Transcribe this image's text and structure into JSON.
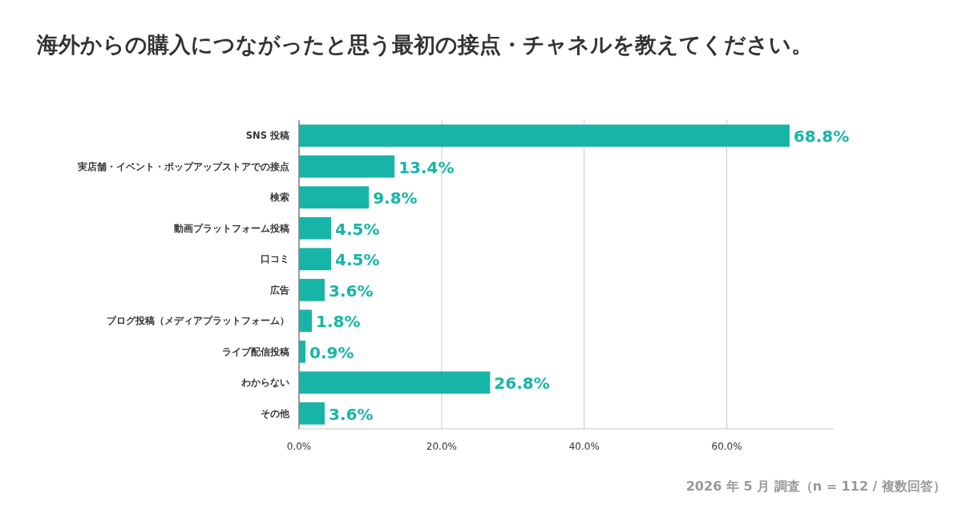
{
  "chart_data": {
    "type": "bar",
    "orientation": "horizontal",
    "title": "海外からの購入につながったと思う最初の接点・チャネルを教えてください。",
    "categories": [
      "SNS 投稿",
      "実店舗・イベント・ポップアップストアでの接点",
      "検索",
      "動画プラットフォーム投稿",
      "口コミ",
      "広告",
      "ブログ投稿（メディアプラットフォーム）",
      "ライブ配信投稿",
      "わからない",
      "その他"
    ],
    "values": [
      68.8,
      13.4,
      9.8,
      4.5,
      4.5,
      3.6,
      1.8,
      0.9,
      26.8,
      3.6
    ],
    "value_labels": [
      "68.8%",
      "13.4%",
      "9.8%",
      "4.5%",
      "4.5%",
      "3.6%",
      "1.8%",
      "0.9%",
      "26.8%",
      "3.6%"
    ],
    "color": "#17b5a7",
    "xlim": [
      0,
      75
    ],
    "xticks": [
      {
        "value": 0,
        "label": "0.0%"
      },
      {
        "value": 20,
        "label": "20.0%"
      },
      {
        "value": 40,
        "label": "40.0%"
      },
      {
        "value": 60,
        "label": "60.0%"
      }
    ],
    "grid": "x",
    "annotations": [
      "2026 年 5 月 調査（n = 112 / 複数回答）"
    ]
  }
}
